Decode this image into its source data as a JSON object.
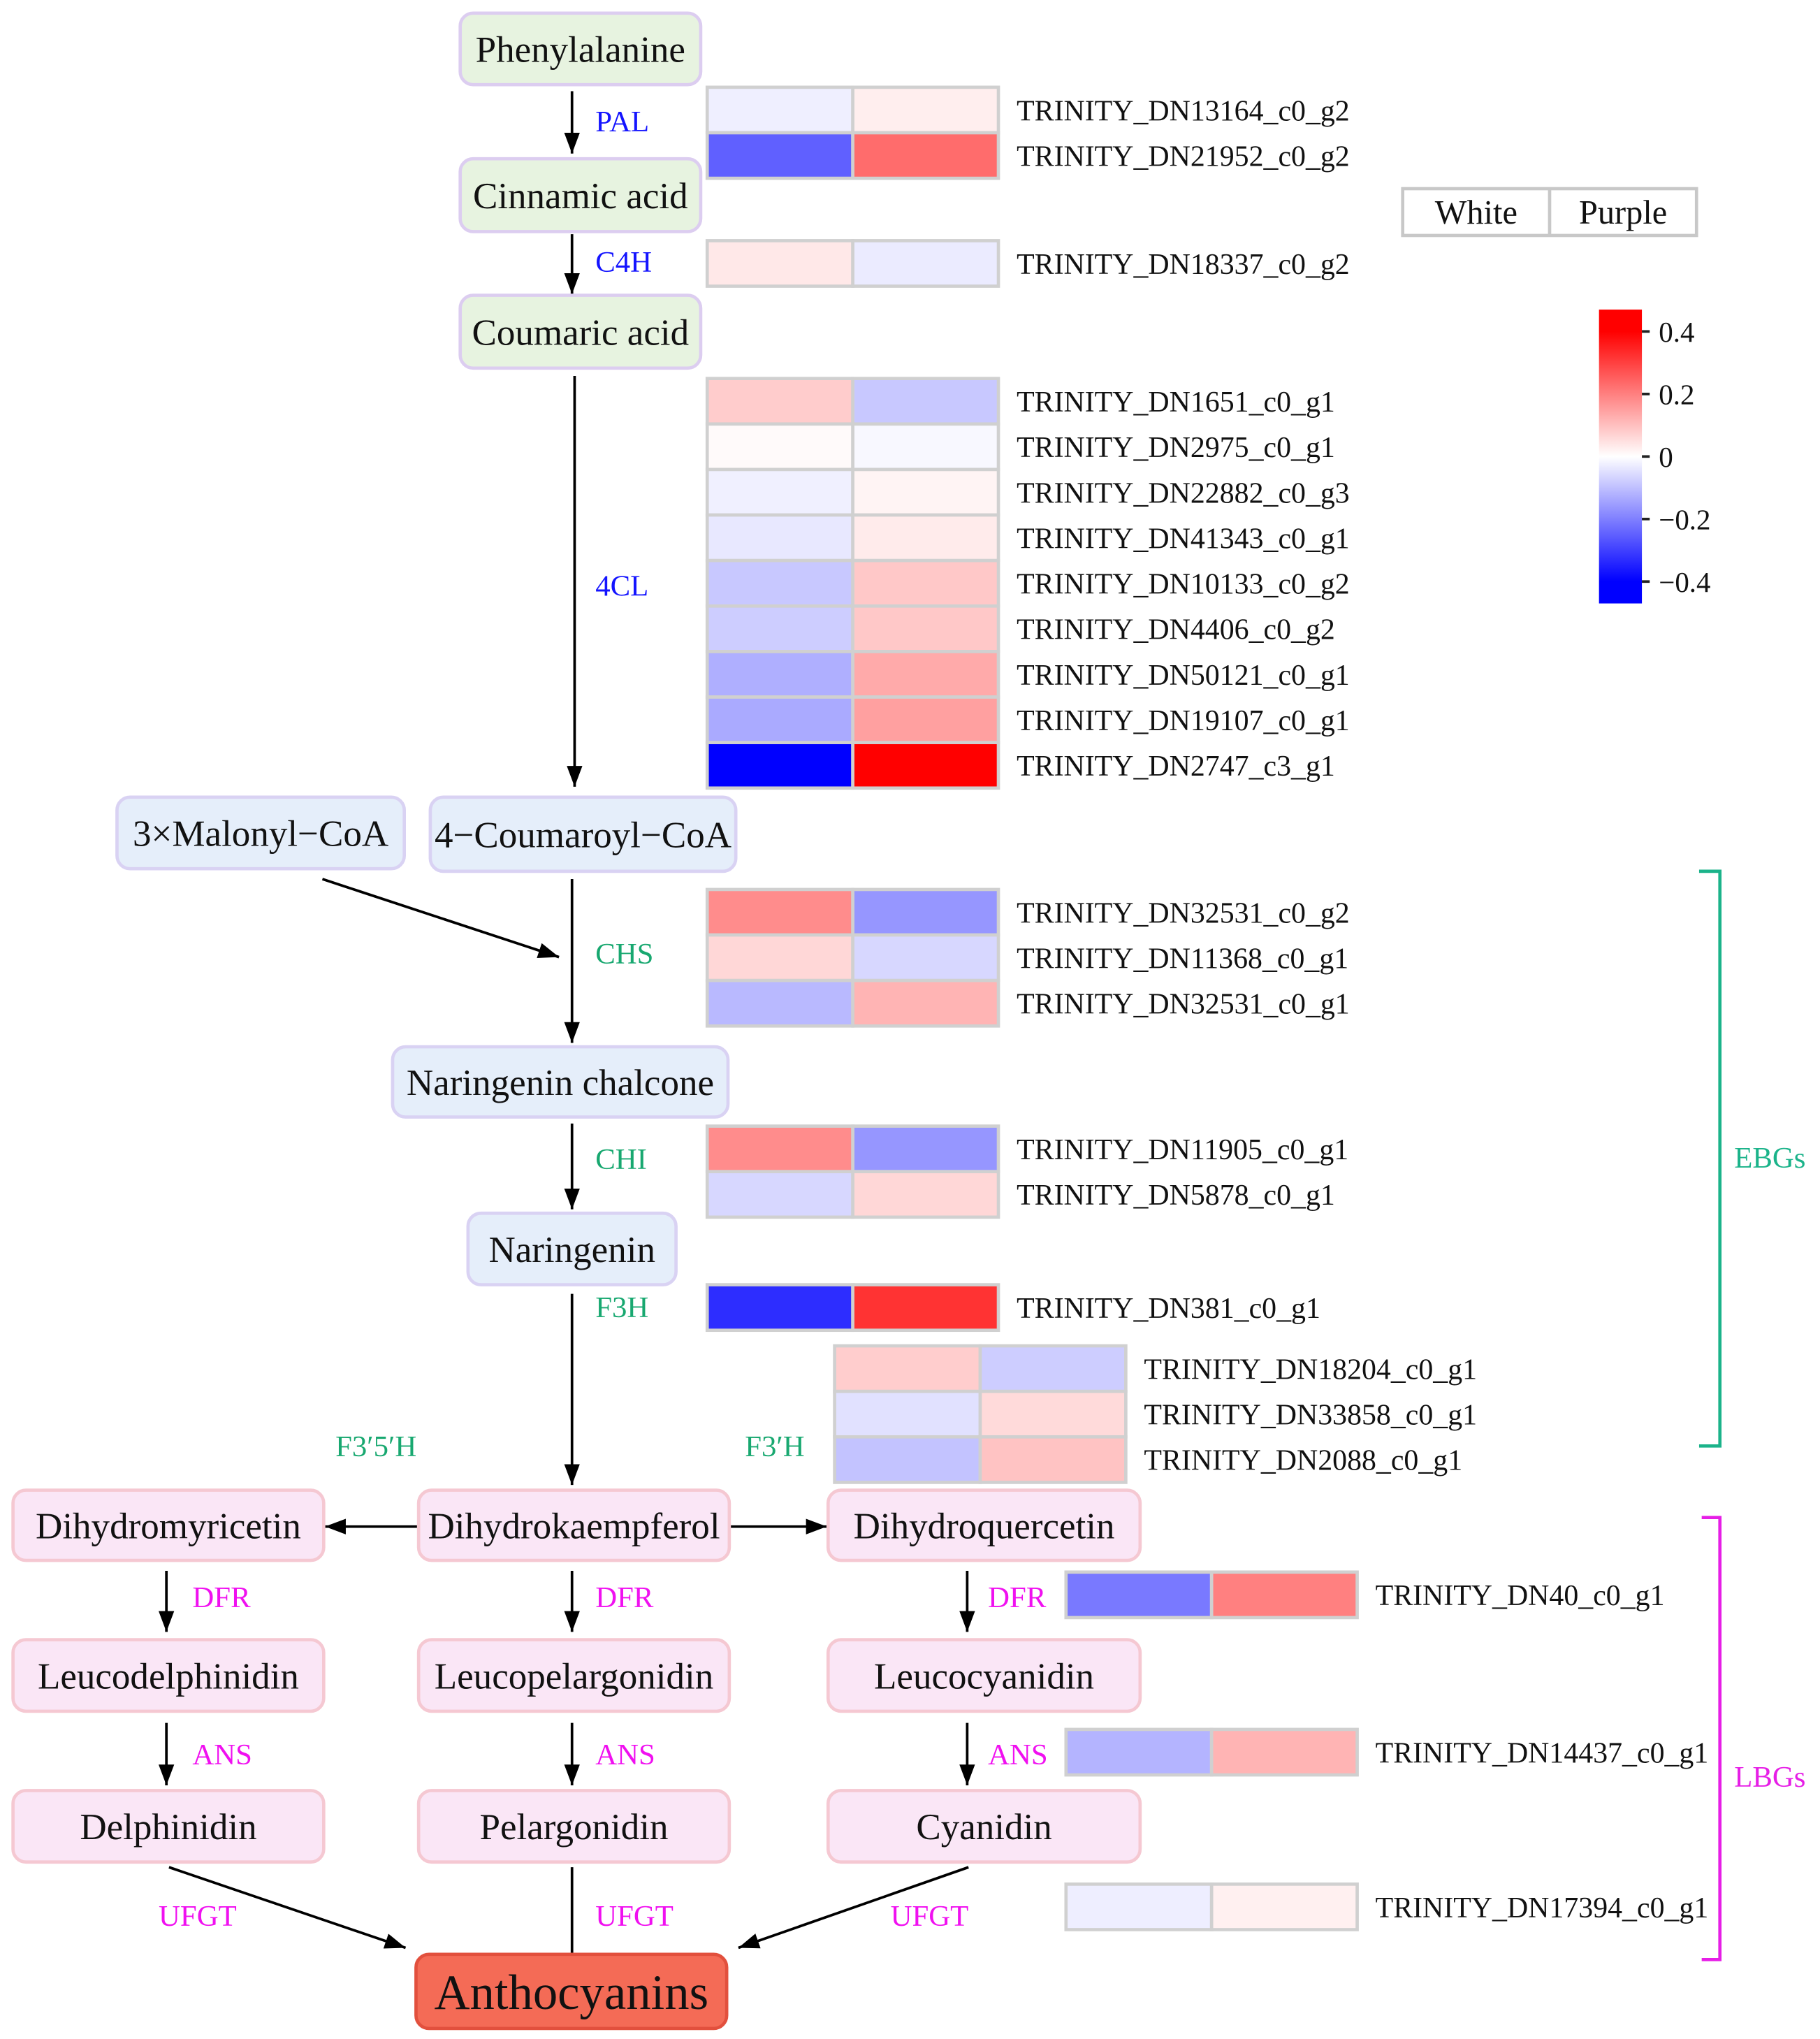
{
  "compounds": {
    "phenylalanine": "Phenylalanine",
    "cinnamic_acid": "Cinnamic acid",
    "coumaric_acid": "Coumaric acid",
    "malonyl_coa": "3×Malonyl−CoA",
    "coumaroyl_coa": "4−Coumaroyl−CoA",
    "naringenin_chalcone": "Naringenin chalcone",
    "naringenin": "Naringenin",
    "dihydromyricetin": "Dihydromyricetin",
    "dihydrokaempferol": "Dihydrokaempferol",
    "dihydroquercetin": "Dihydroquercetin",
    "leucodelphinidin": "Leucodelphinidin",
    "leucopelargonidin": "Leucopelargonidin",
    "leucocyanidin": "Leucocyanidin",
    "delphinidin": "Delphinidin",
    "pelargonidin": "Pelargonidin",
    "cyanidin": "Cyanidin",
    "anthocyanins": "Anthocyanins"
  },
  "enzymes": {
    "pal": "PAL",
    "c4h": "C4H",
    "four_cl": "4CL",
    "chs": "CHS",
    "chi": "CHI",
    "f3h": "F3H",
    "f35h": "F3′5′H",
    "f3h_prime": "F3′H",
    "dfr": "DFR",
    "ans": "ANS",
    "ufgt": "UFGT"
  },
  "heatmap": {
    "columns": [
      "White",
      "Purple"
    ],
    "scale": {
      "min": -0.4,
      "max": 0.4,
      "low_color": "#0000ff",
      "mid_color": "#ffffff",
      "high_color": "#ff0000"
    },
    "colorbar_range": [
      -0.47,
      0.47
    ],
    "colorbar_ticks": [
      {
        "value": 0.4,
        "label": "0.4"
      },
      {
        "value": 0.2,
        "label": "0.2"
      },
      {
        "value": 0,
        "label": "0"
      },
      {
        "value": -0.2,
        "label": "−0.2"
      },
      {
        "value": -0.4,
        "label": "−0.4"
      }
    ],
    "gene_sets": {
      "pal": [
        {
          "id": "TRINITY_DN13164_c0_g2",
          "values": [
            -0.025,
            0.027
          ]
        },
        {
          "id": "TRINITY_DN21952_c0_g2",
          "values": [
            -0.25,
            0.23
          ]
        }
      ],
      "c4h": [
        {
          "id": "TRINITY_DN18337_c0_g2",
          "values": [
            0.036,
            -0.031
          ]
        }
      ],
      "four_cl": [
        {
          "id": "TRINITY_DN1651_c0_g1",
          "values": [
            0.08,
            -0.086
          ]
        },
        {
          "id": "TRINITY_DN2975_c0_g1",
          "values": [
            0.008,
            -0.011
          ]
        },
        {
          "id": "TRINITY_DN22882_c0_g3",
          "values": [
            -0.024,
            0.017
          ]
        },
        {
          "id": "TRINITY_DN41343_c0_g1",
          "values": [
            -0.036,
            0.031
          ]
        },
        {
          "id": "TRINITY_DN10133_c0_g2",
          "values": [
            -0.086,
            0.086
          ]
        },
        {
          "id": "TRINITY_DN4406_c0_g2",
          "values": [
            -0.078,
            0.086
          ]
        },
        {
          "id": "TRINITY_DN50121_c0_g1",
          "values": [
            -0.125,
            0.133
          ]
        },
        {
          "id": "TRINITY_DN19107_c0_g1",
          "values": [
            -0.133,
            0.149
          ]
        },
        {
          "id": "TRINITY_DN2747_c3_g1",
          "values": [
            -0.4,
            0.4
          ]
        }
      ],
      "chs": [
        {
          "id": "TRINITY_DN32531_c0_g2",
          "values": [
            0.18,
            -0.165
          ]
        },
        {
          "id": "TRINITY_DN11368_c0_g1",
          "values": [
            0.063,
            -0.063
          ]
        },
        {
          "id": "TRINITY_DN32531_c0_g1",
          "values": [
            -0.11,
            0.118
          ]
        }
      ],
      "chi": [
        {
          "id": "TRINITY_DN11905_c0_g1",
          "values": [
            0.18,
            -0.165
          ]
        },
        {
          "id": "TRINITY_DN5878_c0_g1",
          "values": [
            -0.063,
            0.063
          ]
        }
      ],
      "f3h": [
        {
          "id": "TRINITY_DN381_c0_g1",
          "values": [
            -0.33,
            0.32
          ]
        }
      ],
      "f3h_prime": [
        {
          "id": "TRINITY_DN18204_c0_g1",
          "values": [
            0.078,
            -0.078
          ]
        },
        {
          "id": "TRINITY_DN33858_c0_g1",
          "values": [
            -0.047,
            0.058
          ]
        },
        {
          "id": "TRINITY_DN2088_c0_g1",
          "values": [
            -0.094,
            0.094
          ]
        }
      ],
      "dfr": [
        {
          "id": "TRINITY_DN40_c0_g1",
          "values": [
            -0.21,
            0.2
          ]
        }
      ],
      "ans": [
        {
          "id": "TRINITY_DN14437_c0_g1",
          "values": [
            -0.118,
            0.118
          ]
        }
      ],
      "ufgt": [
        {
          "id": "TRINITY_DN17394_c0_g1",
          "values": [
            -0.027,
            0.024
          ]
        }
      ]
    }
  },
  "gene_groups": {
    "ebgs": {
      "label": "EBGs",
      "color": "#1bb38a"
    },
    "lbgs": {
      "label": "LBGs",
      "color": "#e61ee6"
    }
  },
  "colors": {
    "enzyme_upstream": "#1414ff",
    "enzyme_early": "#18a870",
    "enzyme_late": "#f010f0",
    "node_upstream_fill": "#e7f3e0",
    "node_upstream_stroke": "#dccdf0",
    "node_middle_fill": "#e5eefa",
    "node_middle_stroke": "#d9d2f3",
    "node_late_fill": "#fae6f6",
    "node_late_stroke": "#f5c8d2",
    "product_fill": "#f46b56",
    "product_stroke": "#e2503d",
    "heatmap_cell_border": "#d0d0d0",
    "legend_border": "#c8c8c8"
  }
}
